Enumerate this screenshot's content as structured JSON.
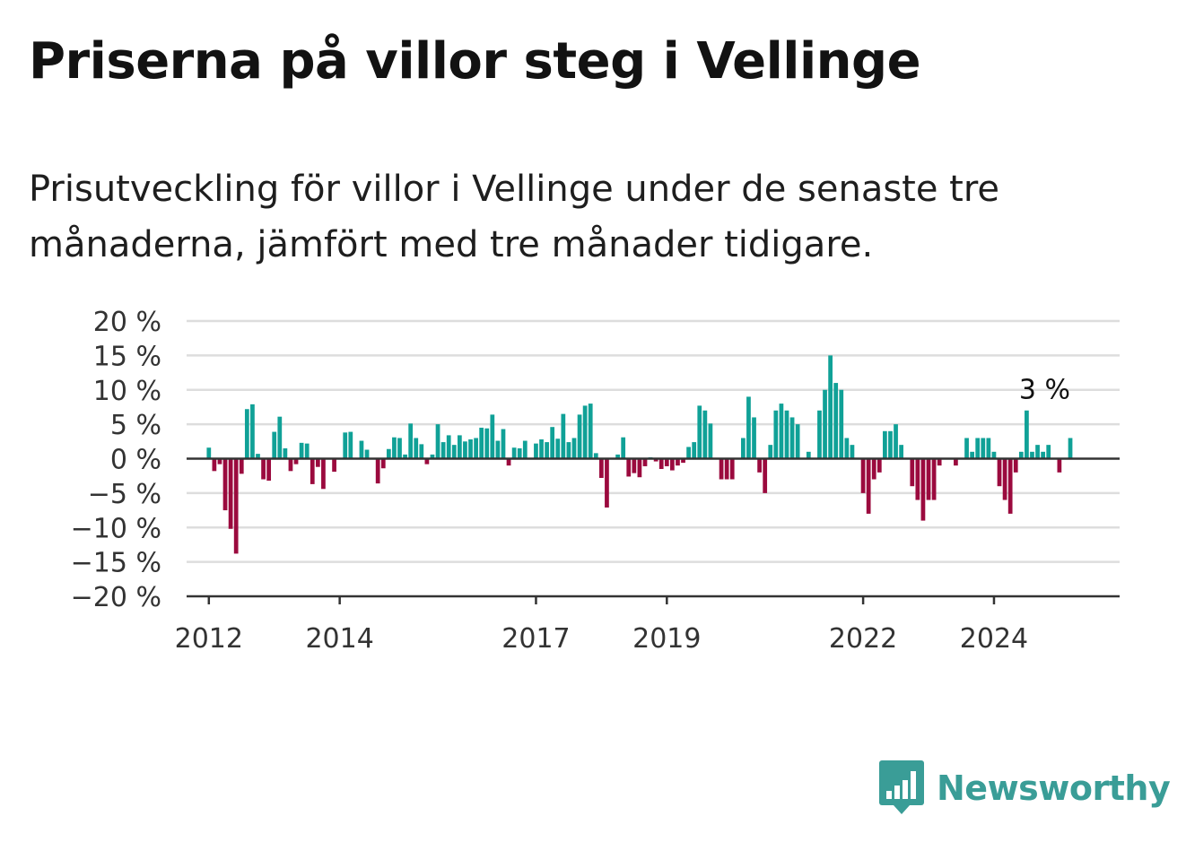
{
  "header": {
    "title": "Priserna på villor steg i Vellinge",
    "subtitle": "Prisutveckling för villor i Vellinge under de senaste tre månaderna, jämfört med tre månader tidigare."
  },
  "brand": {
    "name": "Newsworthy",
    "icon": "newsworthy-logo-icon",
    "color": "#3a9d97"
  },
  "colors": {
    "positive": "#10a197",
    "negative": "#9b0a3e",
    "grid": "#dddddd",
    "axis": "#333333"
  },
  "chart_data": {
    "type": "bar",
    "title": "Priserna på villor steg i Vellinge",
    "subtitle": "Prisutveckling för villor i Vellinge under de senaste tre månaderna, jämfört med tre månader tidigare.",
    "xlabel": "",
    "ylabel": "",
    "ylim": [
      -20,
      20
    ],
    "yticks": [
      20,
      15,
      10,
      5,
      0,
      -5,
      -10,
      -15,
      -20
    ],
    "ytick_labels": [
      "20 %",
      "15 %",
      "10 %",
      "5 %",
      "0 %",
      "−5 %",
      "−10 %",
      "−15 %",
      "−20 %"
    ],
    "x_range": [
      2011.66,
      2025.92
    ],
    "xticks": [
      2012,
      2014,
      2017,
      2019,
      2022,
      2024
    ],
    "xtick_labels": [
      "2012",
      "2014",
      "2017",
      "2019",
      "2022",
      "2024"
    ],
    "grid": true,
    "annotation": {
      "text": "3 %",
      "x": 2024.83,
      "y": 3
    },
    "series": [
      {
        "start": 2012.0,
        "step": 0.08333,
        "values": [
          1.6,
          -1.8,
          -0.8,
          -7.5,
          -10.2,
          -13.8,
          -2.2,
          7.2,
          7.9,
          0.7,
          -3.0,
          -3.2,
          3.9,
          6.1,
          1.5,
          -1.8,
          -0.8,
          2.3,
          2.2,
          -3.7,
          -1.2,
          -4.4,
          0,
          -1.9,
          0,
          3.8,
          3.9,
          0,
          2.6,
          1.3,
          0,
          -3.6,
          -1.4,
          1.4,
          3.1,
          3.0,
          0.6,
          5.1,
          3.0,
          2.1,
          -0.8,
          0.6,
          5.0,
          2.4,
          3.4,
          2.0,
          3.4,
          2.5,
          2.8,
          3.0,
          4.5,
          4.4,
          6.4,
          2.6,
          4.3,
          -1.0,
          1.6,
          1.5,
          2.6,
          0,
          2.2,
          2.8,
          2.4,
          4.6,
          2.9,
          6.5,
          2.4,
          3.0,
          6.4,
          7.7,
          8.0,
          0.8,
          -2.8,
          -7.1,
          0,
          0.6,
          3.1,
          -2.6,
          -2.1,
          -2.7,
          -1.1,
          0.2,
          -0.4,
          -1.5,
          -1.1,
          -1.7,
          -1.0,
          -0.6,
          1.7,
          2.4,
          7.7,
          7.0,
          5.1,
          0,
          -3.0,
          -3.0,
          -3.0,
          0,
          3.0,
          9.0,
          6.0,
          -2.0,
          -5.0,
          2.0,
          7.0,
          8.0,
          7.0,
          6.0,
          5.0,
          0,
          1.0,
          0,
          7.0,
          10.0,
          15.0,
          11.0,
          10.0,
          3.0,
          2.0,
          0,
          -5.0,
          -8.0,
          -3.0,
          -2.0,
          4.0,
          4.0,
          5.0,
          2.0,
          0,
          -4.0,
          -6.0,
          -9.0,
          -6.0,
          -6.0,
          -1.0,
          0,
          0,
          -1.0,
          0,
          3.0,
          1.0,
          3.0,
          3.0,
          3.0,
          1.0,
          -4.0,
          -6.0,
          -8.0,
          -2.0,
          1.0,
          7.0,
          1.0,
          2.0,
          1.0,
          2.0,
          0,
          -2.0,
          0,
          3.0
        ]
      }
    ]
  }
}
